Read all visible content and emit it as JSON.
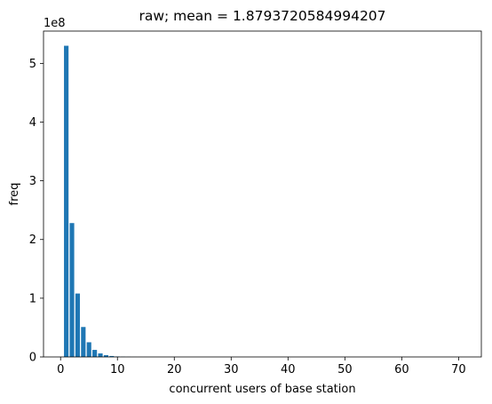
{
  "chart_data": {
    "type": "bar",
    "title": "raw; mean = 1.8793720584994207",
    "xlabel": "concurrent users of base station",
    "ylabel": "freq",
    "y_multiplier_label": "1e8",
    "y_multiplier": 100000000,
    "xlim": [
      -3,
      74
    ],
    "ylim": [
      0,
      5.55
    ],
    "x_ticks": [
      0,
      10,
      20,
      30,
      40,
      50,
      60,
      70
    ],
    "y_ticks": [
      0,
      1,
      2,
      3,
      4,
      5
    ],
    "bar_color": "#1f77b4",
    "x": [
      1,
      2,
      3,
      4,
      5,
      6,
      7,
      8,
      9,
      10,
      11,
      12,
      13,
      14,
      15,
      16,
      17,
      18,
      19,
      20,
      21,
      22,
      23,
      24,
      25,
      26,
      27,
      28,
      29,
      30,
      31,
      32,
      33,
      34,
      35,
      36,
      37,
      38,
      39,
      40,
      41,
      42,
      43,
      44,
      45,
      46,
      47,
      48,
      49,
      50,
      51,
      52,
      53,
      54,
      55,
      56,
      57,
      58,
      59,
      60,
      61,
      62,
      63,
      64,
      65,
      66,
      67,
      68,
      69,
      70,
      71
    ],
    "values": [
      5.3,
      2.28,
      1.08,
      0.51,
      0.25,
      0.12,
      0.06,
      0.03,
      0.016,
      0.008,
      0.004,
      0.002,
      0.001,
      0.0005,
      0.0003,
      0.0002,
      0.0001,
      0.0001,
      0.0001,
      0,
      0,
      0,
      0,
      0,
      0,
      0,
      0,
      0,
      0,
      0,
      0,
      0,
      0,
      0,
      0,
      0,
      0,
      0,
      0,
      0,
      0,
      0,
      0,
      0,
      0,
      0,
      0,
      0,
      0,
      0,
      0,
      0,
      0,
      0,
      0,
      0,
      0,
      0,
      0,
      0,
      0,
      0,
      0,
      0,
      0,
      0,
      0,
      0,
      0,
      0,
      0
    ]
  }
}
